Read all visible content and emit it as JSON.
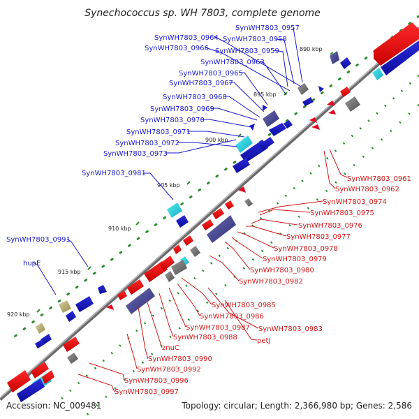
{
  "title": "Synechococcus sp. WH 7803, complete genome",
  "accession": "Accession: NC_009481",
  "topology": "Topology: circular; Length: 2,366,980 bp; Genes: 2,586",
  "colors": {
    "forward_gene": "#e8001c",
    "reverse_gene": "#1a2fd6",
    "blue_label": "#1a1acc",
    "red_label": "#d01818",
    "backbone": "#555555",
    "tick": "#2a8c2a"
  },
  "ruler_ticks": [
    "890 kbp",
    "895 kbp",
    "900 kbp",
    "905 kbp",
    "910 kbp",
    "915 kbp",
    "920 kbp"
  ],
  "blue_labels": [
    "SynWH7803_0957",
    "SynWH7803_0964",
    "SynWH7803_0958",
    "SynWH7803_0966",
    "SynWH7803_0959",
    "SynWH7803_0963",
    "SynWH7803_0965",
    "SynWH7803_0967",
    "SynWH7803_0968",
    "SynWH7803_0969",
    "SynWH7803_0970",
    "SynWH7803_0971",
    "SynWH7803_0972",
    "SynWH7803_0973",
    "SynWH7803_0981",
    "SynWH7803_0991",
    "hupE"
  ],
  "red_labels": [
    "SynWH7803_0961",
    "SynWH7803_0962",
    "SynWH7803_0974",
    "SynWH7803_0975",
    "SynWH7803_0976",
    "SynWH7803_0977",
    "SynWH7803_0978",
    "SynWH7803_0979",
    "SynWH7803_0980",
    "SynWH7803_0982",
    "SynWH7803_0985",
    "SynWH7803_0986",
    "SynWH7803_0983",
    "SynWH7803_0987",
    "SynWH7803_0988",
    "petJ",
    "znuC",
    "SynWH7803_0990",
    "SynWH7803_0992",
    "SynWH7803_0996",
    "SynWH7803_0997"
  ]
}
